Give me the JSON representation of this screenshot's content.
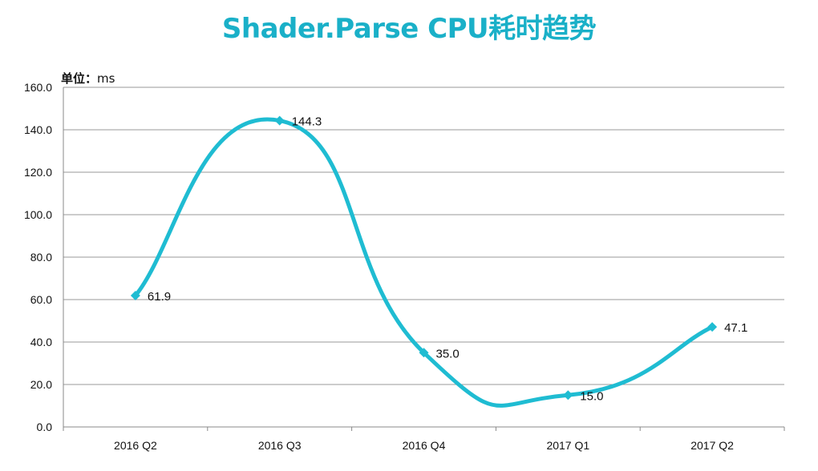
{
  "chart_data": {
    "type": "line",
    "title": "Shader.Parse CPU耗时趋势",
    "unit_label": "单位：",
    "unit_value": "ms",
    "categories": [
      "2016 Q2",
      "2016 Q3",
      "2016 Q4",
      "2017 Q1",
      "2017 Q2"
    ],
    "series": [
      {
        "values": [
          61.9,
          144.3,
          35.0,
          15.0,
          47.1
        ],
        "labels": [
          "61.9",
          "144.3",
          "35.0",
          "15.0",
          "47.1"
        ]
      }
    ],
    "ylim": [
      0,
      160
    ],
    "yticks": [
      "0.0",
      "20.0",
      "40.0",
      "60.0",
      "80.0",
      "100.0",
      "120.0",
      "140.0",
      "160.0"
    ],
    "smooth": true,
    "grid": true,
    "legend": "none",
    "colors": {
      "title": "#1AB0C8",
      "line": "#1FBCD2",
      "grid": "#999999",
      "axis": "#888888"
    }
  }
}
